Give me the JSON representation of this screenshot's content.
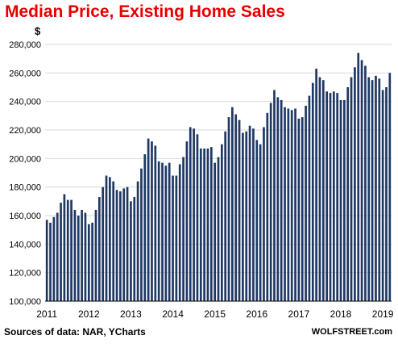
{
  "chart_data": {
    "type": "bar",
    "title": "Median Price, Existing Home Sales",
    "y_unit": "$",
    "ylim": [
      100000,
      280000
    ],
    "y_ticks": [
      100000,
      120000,
      140000,
      160000,
      180000,
      200000,
      220000,
      240000,
      260000,
      280000
    ],
    "y_tick_labels": [
      "100,000",
      "120,000",
      "140,000",
      "160,000",
      "180,000",
      "200,000",
      "220,000",
      "240,000",
      "260,000",
      "280,000"
    ],
    "x_tick_labels": [
      "2011",
      "2012",
      "2013",
      "2014",
      "2015",
      "2016",
      "2017",
      "2018",
      "2019"
    ],
    "grid": "horizontal",
    "bar_color": "#1f3864",
    "months_per_year": 12,
    "values": [
      157000,
      155000,
      159000,
      162000,
      169000,
      175000,
      171000,
      171000,
      164000,
      160000,
      164000,
      162000,
      154000,
      155000,
      164000,
      173000,
      180000,
      188000,
      187000,
      184000,
      178000,
      177000,
      179000,
      180000,
      170000,
      173000,
      184000,
      193000,
      203000,
      214000,
      212000,
      209000,
      198000,
      197000,
      195000,
      197000,
      188000,
      188000,
      196000,
      201000,
      212000,
      222000,
      221000,
      217000,
      207000,
      207000,
      207000,
      208000,
      197000,
      201000,
      210000,
      219000,
      229000,
      236000,
      231000,
      227000,
      218000,
      219000,
      223000,
      221000,
      213000,
      210000,
      222000,
      232000,
      239000,
      248000,
      243000,
      241000,
      236000,
      235000,
      234000,
      235000,
      228000,
      229000,
      237000,
      244000,
      253000,
      263000,
      257000,
      255000,
      247000,
      246000,
      247000,
      246000,
      241000,
      241000,
      250000,
      257000,
      264000,
      274000,
      269000,
      265000,
      257000,
      255000,
      258000,
      256000,
      248000,
      250000,
      260000
    ]
  },
  "source_text": "Sources of data: NAR, YCharts",
  "credit_text": "WOLFSTREET.com"
}
